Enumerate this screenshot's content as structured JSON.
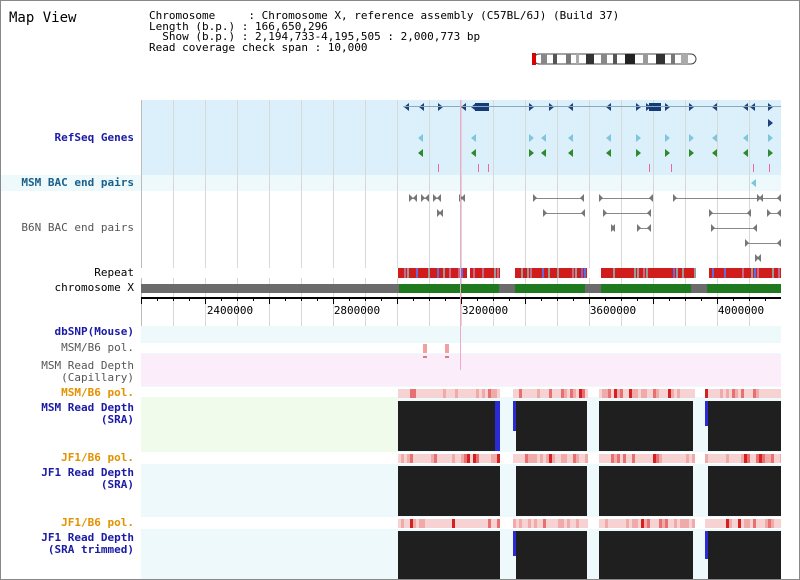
{
  "title": "Map View",
  "info": {
    "line1": "Chromosome     : Chromosome X, reference assembly (C57BL/6J) (Build 37)",
    "line2": "Length (b.p.) : 166,650,296",
    "line3": "  Show (b.p.) : 2,194,733-4,195,505 : 2,000,773 bp",
    "line4": "Read coverage check span : 10,000"
  },
  "tracks": {
    "refseq": "RefSeq Genes",
    "msm_bac": "MSM BAC end pairs",
    "b6n_bac": "B6N BAC end pairs",
    "repeat": "Repeat",
    "chromosome": "chromosome X",
    "dbsnp": "dbSNP(Mouse)",
    "msm_b6_pol_1": "MSM/B6 pol.",
    "msm_depth_cap": "MSM Read Depth\n(Capillary)",
    "msm_b6_pol_2": "MSM/B6 pol.",
    "msm_depth_sra": "MSM Read Depth\n(SRA)",
    "jf1_b6_pol_1": "JF1/B6 pol.",
    "jf1_depth_sra": "JF1 Read Depth\n(SRA)",
    "jf1_b6_pol_2": "JF1/B6 pol.",
    "jf1_depth_trim": "JF1 Read Depth\n(SRA trimmed)"
  },
  "axis": {
    "ticks": [
      "2400000",
      "2800000",
      "3200000",
      "3600000",
      "4000000"
    ]
  },
  "colors": {
    "refseq_bg": "#dcf0fb",
    "gene_blue": "#1e3f80",
    "gene_cyan": "#7fc6dd",
    "gene_green": "#2d8a2d",
    "chromosome_gray": "#6b6b6b",
    "chromosome_green": "#1f7a1f",
    "repeat_red": "#d11c1c",
    "depth_black": "#1f1f1f",
    "depth_blue": "#2a2ad6",
    "label_blue": "#1a1aa6",
    "label_orange": "#e39100"
  }
}
